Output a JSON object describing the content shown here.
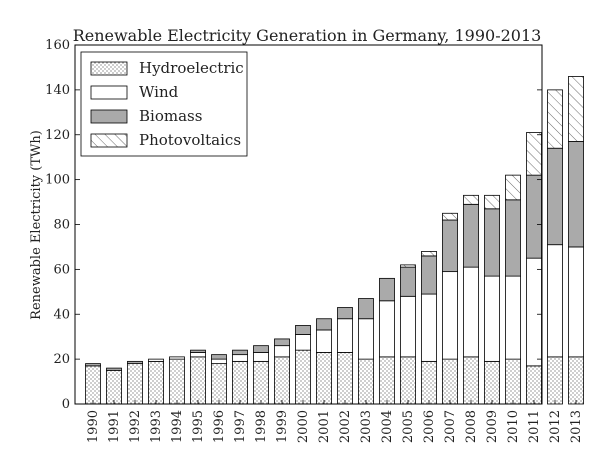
{
  "chart_data": {
    "type": "bar",
    "stacked": true,
    "title": "Renewable Electricity Generation in Germany, 1990-2013",
    "xlabel": "",
    "ylabel": "Renewable Electricity (TWh)",
    "ylim": [
      0,
      160
    ],
    "yticks": [
      0,
      20,
      40,
      60,
      80,
      100,
      120,
      140,
      160
    ],
    "grid": false,
    "legend_position": "top-left",
    "categories": [
      "1990",
      "1991",
      "1992",
      "1993",
      "1994",
      "1995",
      "1996",
      "1997",
      "1998",
      "1999",
      "2000",
      "2001",
      "2002",
      "2003",
      "2004",
      "2005",
      "2006",
      "2007",
      "2008",
      "2009",
      "2010",
      "2011",
      "2012",
      "2013"
    ],
    "series": [
      {
        "name": "Hydroelectric",
        "fill": "dots",
        "color": "#ffffff",
        "values": [
          17,
          15,
          18,
          19,
          20,
          21,
          18,
          19,
          19,
          21,
          24,
          23,
          23,
          20,
          21,
          21,
          19,
          20,
          21,
          19,
          20,
          17,
          21,
          21
        ]
      },
      {
        "name": "Wind",
        "fill": "solid",
        "color": "#ffffff",
        "values": [
          0,
          0,
          0,
          1,
          1,
          2,
          2,
          3,
          4,
          5,
          7,
          10,
          15,
          18,
          25,
          27,
          30,
          39,
          40,
          38,
          37,
          48,
          50,
          49
        ]
      },
      {
        "name": "Biomass",
        "fill": "solid",
        "color": "#aaaaaa",
        "values": [
          1,
          1,
          1,
          0,
          0,
          1,
          2,
          2,
          3,
          3,
          4,
          5,
          5,
          9,
          10,
          13,
          17,
          23,
          28,
          30,
          34,
          37,
          43,
          47
        ]
      },
      {
        "name": "Photovoltaics",
        "fill": "hatch",
        "color": "#ffffff",
        "values": [
          0,
          0,
          0,
          0,
          0,
          0,
          0,
          0,
          0,
          0,
          0,
          0,
          0,
          0,
          0,
          1,
          2,
          3,
          4,
          6,
          11,
          19,
          26,
          29
        ]
      }
    ]
  }
}
